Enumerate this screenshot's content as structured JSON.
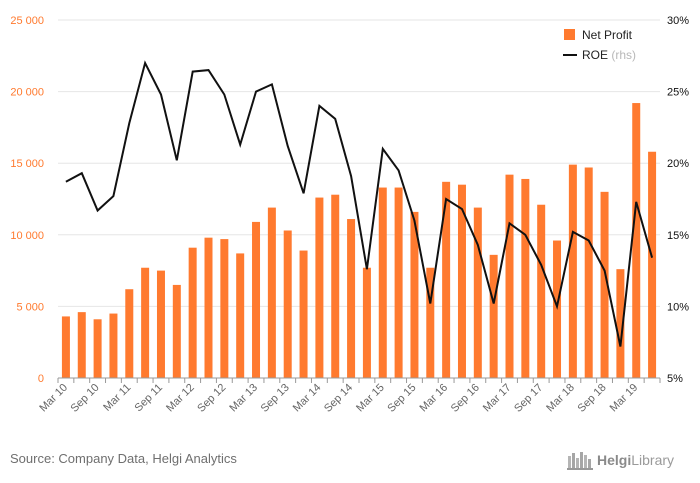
{
  "chart_data": {
    "type": "bar",
    "categories": [
      "Mar 10",
      "Jun 10",
      "Sep 10",
      "Dec 10",
      "Mar 11",
      "Jun 11",
      "Sep 11",
      "Dec 11",
      "Mar 12",
      "Jun 12",
      "Sep 12",
      "Dec 12",
      "Mar 13",
      "Jun 13",
      "Sep 13",
      "Dec 13",
      "Mar 14",
      "Jun 14",
      "Sep 14",
      "Dec 14",
      "Mar 15",
      "Jun 15",
      "Sep 15",
      "Dec 15",
      "Mar 16",
      "Jun 16",
      "Sep 16",
      "Dec 16",
      "Mar 17",
      "Jun 17",
      "Sep 17",
      "Dec 17",
      "Mar 18",
      "Jun 18",
      "Sep 18",
      "Dec 18",
      "Mar 19",
      "Jun 19"
    ],
    "tick_labels": [
      "Mar 10",
      "Sep 10",
      "Mar 11",
      "Sep 11",
      "Mar 12",
      "Sep 12",
      "Mar 13",
      "Sep 13",
      "Mar 14",
      "Sep 14",
      "Mar 15",
      "Sep 15",
      "Mar 16",
      "Sep 16",
      "Mar 17",
      "Sep 17",
      "Mar 18",
      "Sep 18",
      "Mar 19"
    ],
    "series": [
      {
        "name": "Net Profit",
        "type": "bar",
        "axis": "left",
        "color": "#FF7A2F",
        "values": [
          4300,
          4600,
          4100,
          4500,
          6200,
          7700,
          7500,
          6500,
          9100,
          9800,
          9700,
          8700,
          10900,
          11900,
          10300,
          8900,
          12600,
          12800,
          11100,
          7700,
          13300,
          13300,
          11600,
          7700,
          13700,
          13500,
          11900,
          8600,
          14200,
          13900,
          12100,
          9600,
          14900,
          14700,
          13000,
          7600,
          19200,
          15800
        ]
      },
      {
        "name": "ROE",
        "legend_suffix": "(rhs)",
        "type": "line",
        "axis": "right",
        "color": "#111111",
        "values": [
          18.7,
          19.3,
          16.7,
          17.7,
          22.8,
          27.0,
          24.8,
          20.2,
          26.4,
          26.5,
          24.8,
          21.3,
          25.0,
          25.5,
          21.2,
          17.9,
          24.0,
          23.1,
          19.1,
          12.6,
          21.0,
          19.5,
          16.0,
          10.2,
          17.5,
          16.8,
          14.3,
          10.2,
          15.8,
          15.0,
          12.9,
          10.0,
          15.2,
          14.6,
          12.5,
          7.2,
          17.3,
          13.4
        ]
      }
    ],
    "y_left": {
      "ticks": [
        "0",
        "5 000",
        "10 000",
        "15 000",
        "20 000",
        "25 000"
      ],
      "ylim": [
        0,
        25000
      ],
      "color": "#FF7A2F"
    },
    "y_right": {
      "ticks": [
        "5%",
        "10%",
        "15%",
        "20%",
        "25%",
        "30%"
      ],
      "ylim": [
        5,
        30
      ],
      "color": "#111111"
    },
    "grid": "horizontal",
    "legend_position": "top-right"
  },
  "source_text": "Source: Company Data, Helgi Analytics",
  "brand": {
    "name_bold": "Helgi",
    "name_rest": "Library"
  }
}
